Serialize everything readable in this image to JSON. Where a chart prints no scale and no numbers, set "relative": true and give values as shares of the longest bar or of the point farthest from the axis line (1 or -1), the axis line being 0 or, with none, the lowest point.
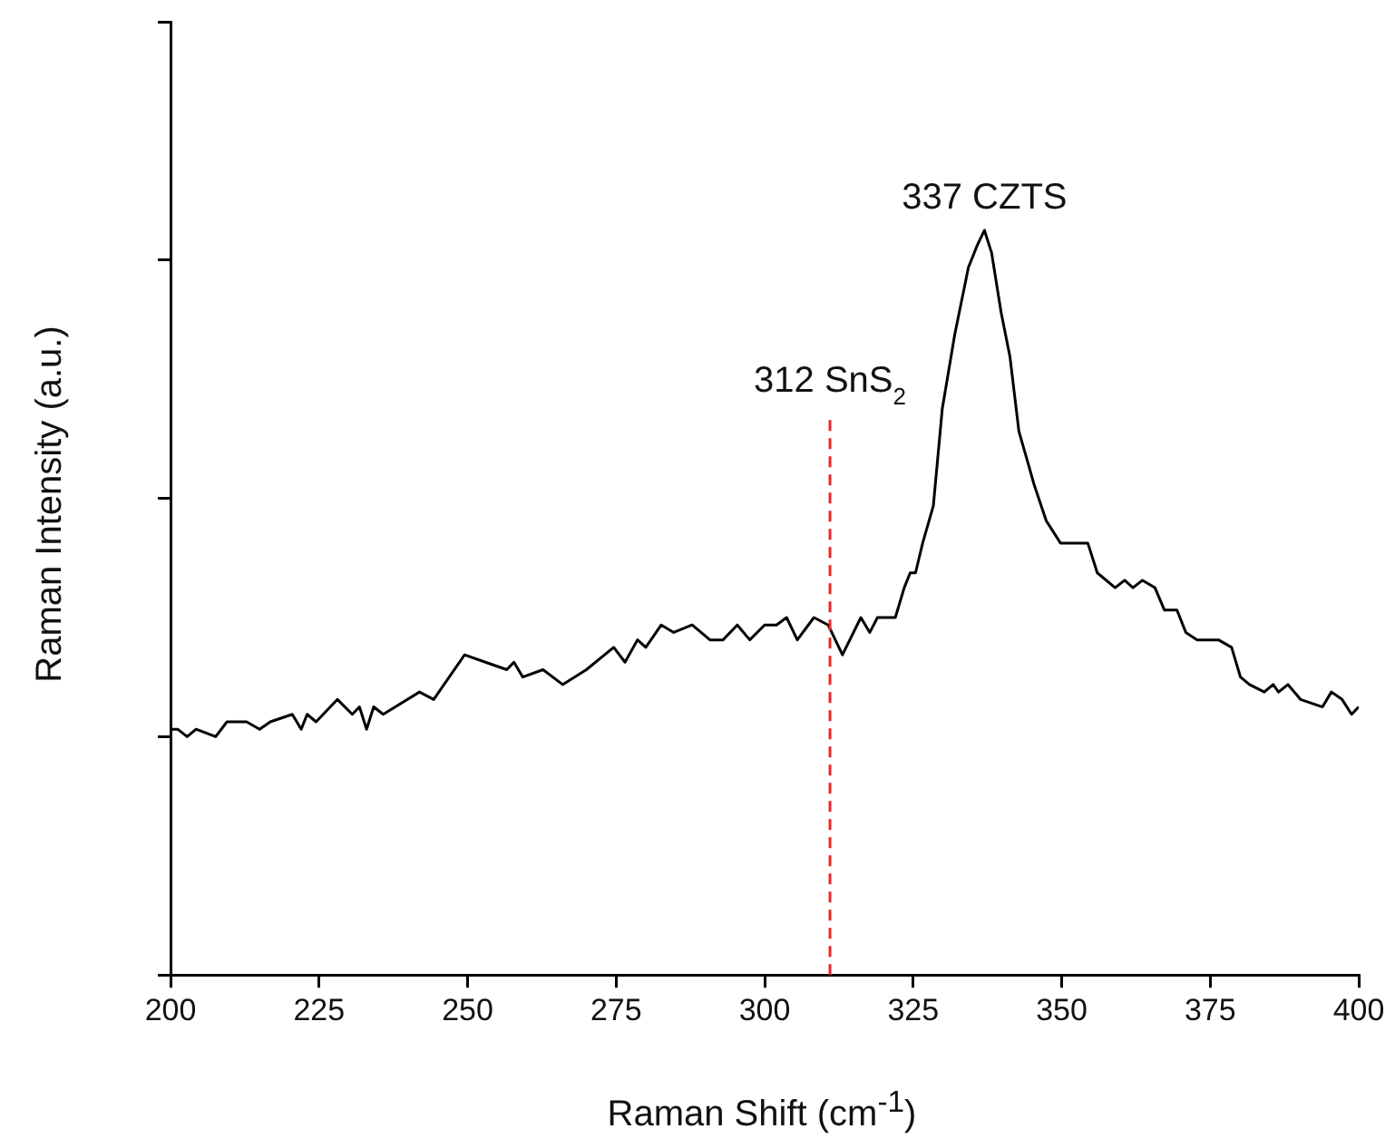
{
  "chart_data": {
    "type": "line",
    "relative": true,
    "xlabel": "Raman Shift (cm$^{-1}$)",
    "ylabel": "Raman Intensity (a.u.)",
    "xlim": [
      200,
      400
    ],
    "xticks": [
      200,
      225,
      250,
      275,
      300,
      325,
      350,
      375,
      400
    ],
    "marker": "none",
    "legend": false,
    "series": [
      {
        "color": "#000000",
        "x": [
          200,
          201.2,
          202.8,
          204.3,
          207.6,
          209.5,
          212.8,
          215,
          216.8,
          220.5,
          222,
          223,
          224.5,
          228.1,
          230.6,
          231.8,
          233,
          234.2,
          235.8,
          241.9,
          244.3,
          249.5,
          253,
          256.6,
          257.8,
          259.3,
          262.7,
          266,
          268,
          270,
          274.6,
          276.5,
          278.6,
          280,
          282.6,
          284.7,
          287.8,
          290.8,
          293,
          295.4,
          297.5,
          300,
          302,
          303.7,
          305.5,
          308.3,
          310.7,
          313.1,
          316.2,
          317.7,
          319,
          322,
          323.5,
          324.5,
          325.4,
          326.6,
          328.4,
          329.9,
          332,
          334.3,
          335.8,
          337,
          338.2,
          339.8,
          341.3,
          342.8,
          344.6,
          345.3,
          347.4,
          349.8,
          354.4,
          356,
          359,
          360.6,
          362,
          363.6,
          365.7,
          367.3,
          369.4,
          370.9,
          372.8,
          374.3,
          376.4,
          378.6,
          380.1,
          381.6,
          384.1,
          385.6,
          386.5,
          388.1,
          390.2,
          393.9,
          395.4,
          397.2,
          398.8,
          400
        ],
        "values": [
          0.33,
          0.33,
          0.32,
          0.33,
          0.32,
          0.34,
          0.34,
          0.33,
          0.34,
          0.35,
          0.33,
          0.35,
          0.34,
          0.37,
          0.35,
          0.36,
          0.33,
          0.36,
          0.35,
          0.38,
          0.37,
          0.43,
          0.42,
          0.41,
          0.42,
          0.4,
          0.41,
          0.39,
          0.4,
          0.41,
          0.44,
          0.42,
          0.45,
          0.44,
          0.47,
          0.46,
          0.47,
          0.45,
          0.45,
          0.47,
          0.45,
          0.47,
          0.47,
          0.48,
          0.45,
          0.48,
          0.47,
          0.43,
          0.48,
          0.46,
          0.48,
          0.48,
          0.52,
          0.54,
          0.54,
          0.58,
          0.63,
          0.76,
          0.86,
          0.95,
          0.98,
          1,
          0.97,
          0.89,
          0.83,
          0.73,
          0.68,
          0.66,
          0.61,
          0.58,
          0.58,
          0.54,
          0.52,
          0.53,
          0.52,
          0.53,
          0.52,
          0.49,
          0.49,
          0.46,
          0.45,
          0.45,
          0.45,
          0.44,
          0.4,
          0.39,
          0.38,
          0.39,
          0.38,
          0.39,
          0.37,
          0.36,
          0.38,
          0.37,
          0.35,
          0.36
        ]
      }
    ],
    "ref_lines": [
      {
        "axis": "x",
        "value": 311,
        "label": "312 SnS$_{2}$",
        "color": "#e8272a",
        "line_style": "dashed"
      }
    ],
    "annotations": [
      {
        "text": "337 CZTS",
        "x": 337,
        "y": 1
      }
    ]
  }
}
